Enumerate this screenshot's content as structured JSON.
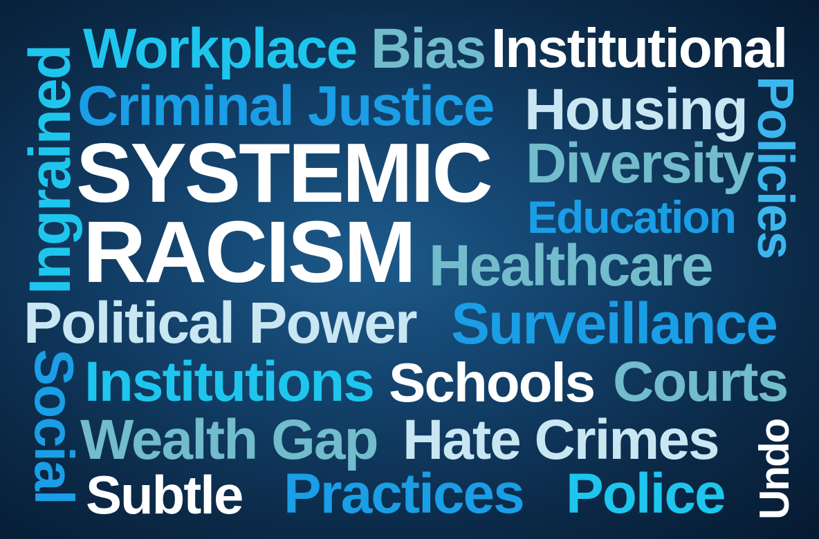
{
  "words": {
    "workplace": "Workplace",
    "bias": "Bias",
    "institutional": "Institutional",
    "criminal_justice": "Criminal Justice",
    "housing": "Housing",
    "systemic": "SYSTEMIC",
    "racism": "RACISM",
    "diversity": "Diversity",
    "education": "Education",
    "healthcare": "Healthcare",
    "political_power": "Political Power",
    "surveillance": "Surveillance",
    "institutions": "Institutions",
    "schools": "Schools",
    "courts": "Courts",
    "wealth_gap": "Wealth Gap",
    "hate_crimes": "Hate Crimes",
    "subtle": "Subtle",
    "practices": "Practices",
    "police": "Police",
    "ingrained": "Ingrained",
    "social": "Social",
    "policies": "Policies",
    "undo": "Undo"
  },
  "colors": {
    "white": "#ffffff",
    "pale_blue": "#c9e6f3",
    "teal": "#72bccb",
    "cyan": "#1ec6ee",
    "blue": "#1a9ee6",
    "background": "#123f68"
  }
}
